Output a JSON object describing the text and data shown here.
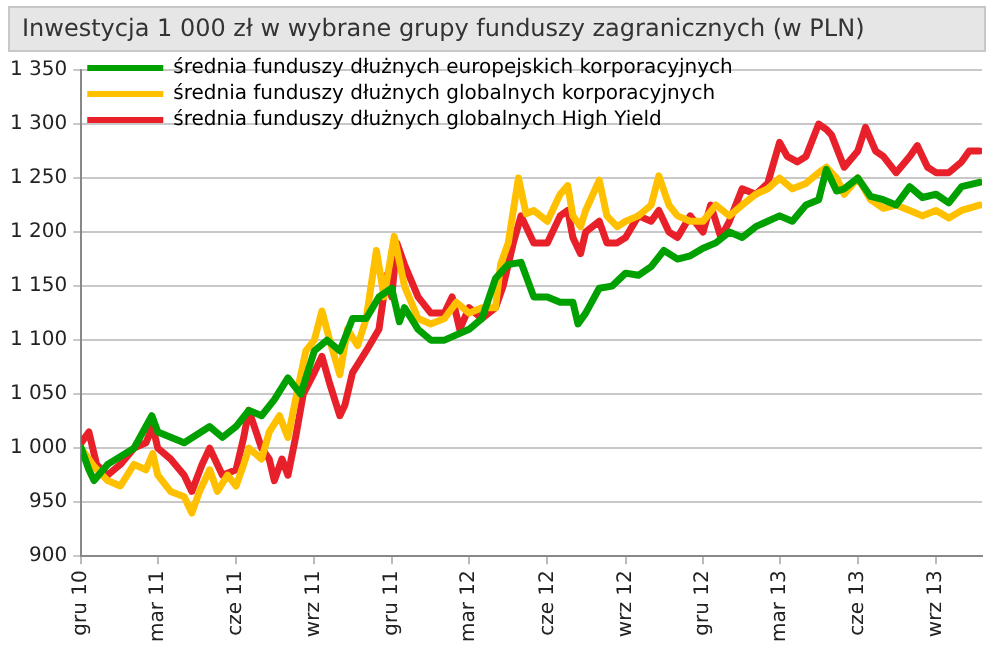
{
  "chart_data": {
    "type": "line",
    "title": "Inwestycja 1 000 zł w wybrane grupy funduszy zagranicznych (w PLN)",
    "xlim": [
      "2010-12-01",
      "2013-10-25"
    ],
    "xticks": [
      {
        "value": "2010-12-01",
        "label": "gru 10"
      },
      {
        "value": "2011-03-01",
        "label": "mar 11"
      },
      {
        "value": "2011-06-01",
        "label": "cze 11"
      },
      {
        "value": "2011-09-01",
        "label": "wrz 11"
      },
      {
        "value": "2011-12-01",
        "label": "gru 11"
      },
      {
        "value": "2012-03-01",
        "label": "mar 12"
      },
      {
        "value": "2012-06-01",
        "label": "cze 12"
      },
      {
        "value": "2012-09-01",
        "label": "wrz 12"
      },
      {
        "value": "2012-12-01",
        "label": "gru 12"
      },
      {
        "value": "2013-03-01",
        "label": "mar 13"
      },
      {
        "value": "2013-06-01",
        "label": "cze 13"
      },
      {
        "value": "2013-09-01",
        "label": "wrz 13"
      }
    ],
    "ylim": [
      900,
      1350
    ],
    "yticks": [
      {
        "value": 900,
        "label": "900"
      },
      {
        "value": 950,
        "label": "950"
      },
      {
        "value": 1000,
        "label": "1 000"
      },
      {
        "value": 1050,
        "label": "1 050"
      },
      {
        "value": 1100,
        "label": "1 100"
      },
      {
        "value": 1150,
        "label": "1 150"
      },
      {
        "value": 1200,
        "label": "1 200"
      },
      {
        "value": 1250,
        "label": "1 250"
      },
      {
        "value": 1300,
        "label": "1 300"
      },
      {
        "value": 1350,
        "label": "1 350"
      }
    ],
    "grid": "y",
    "legend": "top left",
    "marker": "none",
    "line_style": "solid",
    "series": [
      {
        "name": "średnia funduszy dłużnych europejskich korporacyjnych",
        "color": "#00a000",
        "x": [
          "2010-12-01",
          "2010-12-10",
          "2010-12-16",
          "2011-01-01",
          "2011-02-01",
          "2011-02-22",
          "2011-03-01",
          "2011-04-01",
          "2011-05-01",
          "2011-05-16",
          "2011-06-01",
          "2011-06-16",
          "2011-07-01",
          "2011-07-16",
          "2011-08-01",
          "2011-08-16",
          "2011-09-01",
          "2011-09-16",
          "2011-10-01",
          "2011-10-16",
          "2011-11-01",
          "2011-11-16",
          "2011-12-01",
          "2011-12-10",
          "2011-12-16",
          "2012-01-01",
          "2012-01-16",
          "2012-02-01",
          "2012-03-01",
          "2012-03-16",
          "2012-04-01",
          "2012-04-10",
          "2012-04-16",
          "2012-05-01",
          "2012-05-16",
          "2012-06-01",
          "2012-06-16",
          "2012-07-01",
          "2012-07-07",
          "2012-07-16",
          "2012-08-01",
          "2012-08-16",
          "2012-09-01",
          "2012-09-16",
          "2012-10-01",
          "2012-10-16",
          "2012-11-01",
          "2012-11-16",
          "2012-12-01",
          "2012-12-16",
          "2013-01-01",
          "2013-01-16",
          "2013-02-01",
          "2013-02-15",
          "2013-03-01",
          "2013-03-16",
          "2013-04-01",
          "2013-04-16",
          "2013-04-25",
          "2013-05-07",
          "2013-05-16",
          "2013-06-01",
          "2013-06-16",
          "2013-07-01",
          "2013-07-16",
          "2013-08-01",
          "2013-08-16",
          "2013-09-01",
          "2013-09-16",
          "2013-10-01",
          "2013-10-22"
        ],
        "values": [
          1000,
          980,
          970,
          985,
          1000,
          1030,
          1015,
          1005,
          1020,
          1010,
          1020,
          1035,
          1030,
          1045,
          1065,
          1050,
          1090,
          1100,
          1090,
          1120,
          1120,
          1140,
          1148,
          1117,
          1130,
          1110,
          1100,
          1100,
          1110,
          1120,
          1157,
          1165,
          1170,
          1172,
          1140,
          1140,
          1135,
          1135,
          1115,
          1125,
          1148,
          1150,
          1162,
          1160,
          1168,
          1183,
          1175,
          1178,
          1185,
          1190,
          1200,
          1195,
          1205,
          1210,
          1215,
          1210,
          1225,
          1230,
          1258,
          1238,
          1240,
          1250,
          1233,
          1230,
          1225,
          1242,
          1232,
          1235,
          1227,
          1242,
          1246
        ]
      },
      {
        "name": "średnia funduszy dłużnych globalnych korporacyjnych",
        "color": "#ffc000",
        "x": [
          "2010-12-01",
          "2010-12-16",
          "2011-01-01",
          "2011-01-16",
          "2011-02-01",
          "2011-02-15",
          "2011-02-23",
          "2011-03-01",
          "2011-03-16",
          "2011-04-01",
          "2011-04-10",
          "2011-04-19",
          "2011-05-01",
          "2011-05-10",
          "2011-05-22",
          "2011-06-01",
          "2011-06-10",
          "2011-06-16",
          "2011-07-01",
          "2011-07-10",
          "2011-07-22",
          "2011-08-01",
          "2011-08-10",
          "2011-08-22",
          "2011-09-01",
          "2011-09-10",
          "2011-09-19",
          "2011-10-01",
          "2011-10-10",
          "2011-10-22",
          "2011-11-01",
          "2011-11-13",
          "2011-11-22",
          "2011-12-04",
          "2011-12-16",
          "2012-01-01",
          "2012-01-16",
          "2012-02-01",
          "2012-02-15",
          "2012-03-01",
          "2012-03-16",
          "2012-04-01",
          "2012-04-07",
          "2012-04-16",
          "2012-04-28",
          "2012-05-07",
          "2012-05-16",
          "2012-06-01",
          "2012-06-16",
          "2012-06-25",
          "2012-07-01",
          "2012-07-10",
          "2012-07-16",
          "2012-08-01",
          "2012-08-10",
          "2012-08-22",
          "2012-09-01",
          "2012-09-16",
          "2012-10-01",
          "2012-10-10",
          "2012-10-22",
          "2012-11-01",
          "2012-11-16",
          "2012-12-01",
          "2012-12-16",
          "2013-01-01",
          "2013-01-16",
          "2013-02-01",
          "2013-02-15",
          "2013-03-01",
          "2013-03-16",
          "2013-04-01",
          "2013-04-16",
          "2013-04-25",
          "2013-05-07",
          "2013-05-16",
          "2013-06-01",
          "2013-06-16",
          "2013-07-01",
          "2013-07-16",
          "2013-08-01",
          "2013-08-16",
          "2013-09-01",
          "2013-09-16",
          "2013-10-01",
          "2013-10-22"
        ],
        "values": [
          1000,
          983,
          970,
          965,
          985,
          980,
          995,
          975,
          960,
          955,
          940,
          960,
          980,
          960,
          975,
          965,
          985,
          1000,
          990,
          1015,
          1030,
          1010,
          1045,
          1090,
          1100,
          1127,
          1100,
          1068,
          1110,
          1095,
          1120,
          1183,
          1140,
          1196,
          1150,
          1120,
          1115,
          1120,
          1135,
          1125,
          1130,
          1130,
          1170,
          1190,
          1250,
          1217,
          1220,
          1210,
          1235,
          1243,
          1215,
          1205,
          1220,
          1248,
          1215,
          1205,
          1210,
          1215,
          1225,
          1252,
          1225,
          1215,
          1210,
          1210,
          1225,
          1215,
          1225,
          1235,
          1240,
          1250,
          1240,
          1245,
          1255,
          1260,
          1250,
          1235,
          1250,
          1230,
          1222,
          1225,
          1220,
          1215,
          1220,
          1213,
          1220,
          1225
        ]
      },
      {
        "name": "średnia funduszy dłużnych globalnych High Yield",
        "color": "#e8202a",
        "x": [
          "2010-12-01",
          "2010-12-10",
          "2010-12-19",
          "2011-01-01",
          "2011-01-16",
          "2011-02-01",
          "2011-02-15",
          "2011-02-23",
          "2011-03-01",
          "2011-03-16",
          "2011-04-01",
          "2011-04-10",
          "2011-04-22",
          "2011-05-01",
          "2011-05-16",
          "2011-06-01",
          "2011-06-10",
          "2011-06-16",
          "2011-07-01",
          "2011-07-10",
          "2011-07-16",
          "2011-07-25",
          "2011-08-01",
          "2011-08-10",
          "2011-08-19",
          "2011-09-01",
          "2011-09-10",
          "2011-09-19",
          "2011-10-01",
          "2011-10-07",
          "2011-10-16",
          "2011-11-01",
          "2011-11-16",
          "2011-11-25",
          "2011-12-01",
          "2011-12-07",
          "2011-12-16",
          "2012-01-01",
          "2012-01-16",
          "2012-02-01",
          "2012-02-10",
          "2012-02-19",
          "2012-03-01",
          "2012-03-16",
          "2012-04-01",
          "2012-04-10",
          "2012-04-22",
          "2012-05-01",
          "2012-05-16",
          "2012-06-01",
          "2012-06-16",
          "2012-06-25",
          "2012-07-01",
          "2012-07-10",
          "2012-07-16",
          "2012-08-01",
          "2012-08-10",
          "2012-08-22",
          "2012-09-01",
          "2012-09-16",
          "2012-10-01",
          "2012-10-10",
          "2012-10-22",
          "2012-11-01",
          "2012-11-16",
          "2012-12-01",
          "2012-12-10",
          "2012-12-22",
          "2013-01-01",
          "2013-01-16",
          "2013-02-01",
          "2013-02-15",
          "2013-03-01",
          "2013-03-10",
          "2013-03-22",
          "2013-04-01",
          "2013-04-16",
          "2013-04-25",
          "2013-05-01",
          "2013-05-16",
          "2013-06-01",
          "2013-06-10",
          "2013-06-22",
          "2013-07-01",
          "2013-07-16",
          "2013-08-01",
          "2013-08-10",
          "2013-08-22",
          "2013-09-01",
          "2013-09-16",
          "2013-10-01",
          "2013-10-10",
          "2013-10-22"
        ],
        "values": [
          1005,
          1015,
          985,
          975,
          985,
          1000,
          1005,
          1020,
          1000,
          990,
          975,
          960,
          985,
          1000,
          975,
          980,
          1010,
          1035,
          1000,
          990,
          970,
          990,
          975,
          1010,
          1050,
          1070,
          1085,
          1060,
          1030,
          1040,
          1070,
          1090,
          1110,
          1160,
          1140,
          1190,
          1170,
          1140,
          1125,
          1125,
          1140,
          1110,
          1130,
          1120,
          1130,
          1150,
          1190,
          1215,
          1190,
          1190,
          1215,
          1220,
          1195,
          1180,
          1200,
          1210,
          1190,
          1190,
          1195,
          1215,
          1210,
          1220,
          1200,
          1195,
          1215,
          1200,
          1225,
          1195,
          1210,
          1240,
          1235,
          1245,
          1283,
          1270,
          1265,
          1270,
          1300,
          1295,
          1290,
          1260,
          1275,
          1297,
          1275,
          1270,
          1255,
          1270,
          1280,
          1260,
          1255,
          1255,
          1265,
          1275,
          1275
        ]
      }
    ]
  }
}
